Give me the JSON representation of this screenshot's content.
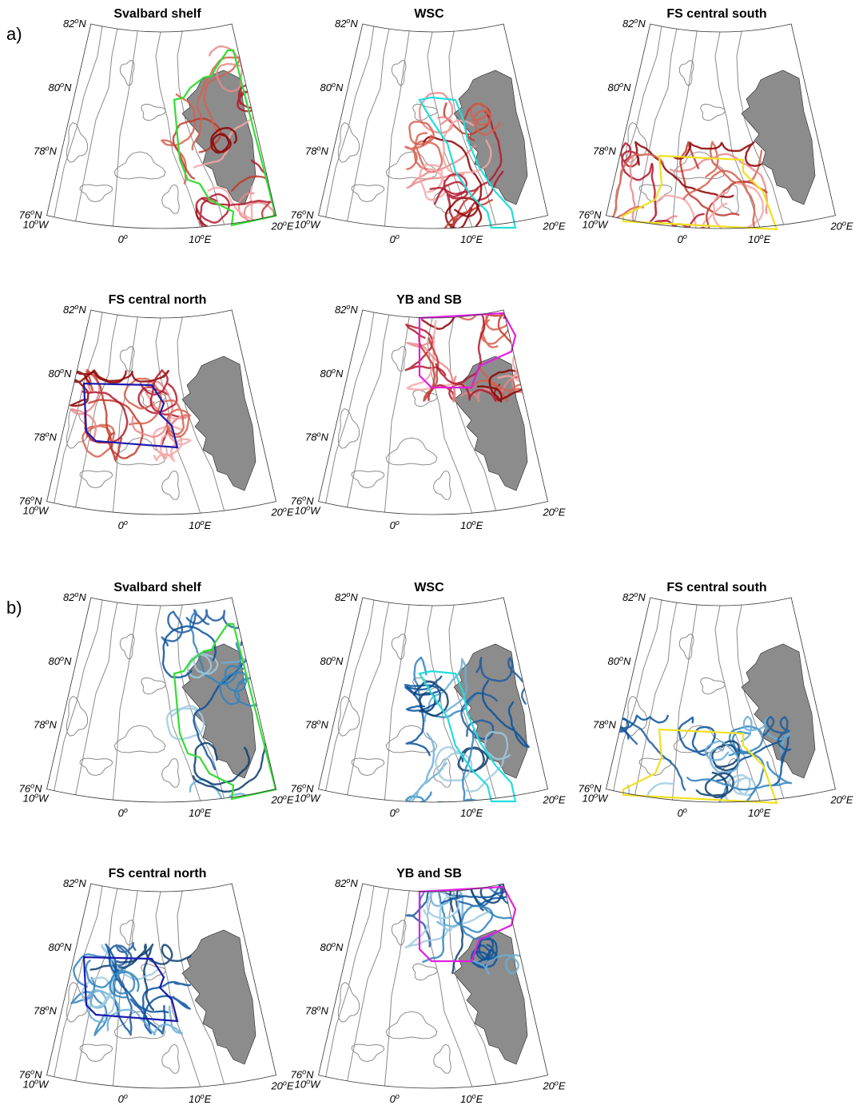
{
  "figure": {
    "lat_labels": [
      [
        "82",
        "o",
        "N"
      ],
      [
        "80",
        "o",
        "N"
      ],
      [
        "78",
        "o",
        "N"
      ],
      [
        "76",
        "o",
        "N"
      ]
    ],
    "lon_labels": [
      [
        "10",
        "o",
        "W"
      ],
      [
        "0",
        "o"
      ],
      [
        "10",
        "o",
        "E"
      ],
      [
        "20",
        "o",
        "E"
      ]
    ],
    "groups": [
      {
        "label": "a)",
        "track_colors": [
          "#b2182b",
          "#d6604d",
          "#e8888a",
          "#c0392b",
          "#8b0000",
          "#f4a6a6"
        ],
        "panels": [
          {
            "title": "Svalbard shelf",
            "region_color": "#33dd33"
          },
          {
            "title": "WSC",
            "region_color": "#22dddd"
          },
          {
            "title": "FS central south",
            "region_color": "#f0e020"
          },
          {
            "title": "FS central north",
            "region_color": "#1a1ab0"
          },
          {
            "title": "YB and SB",
            "region_color": "#e020e0"
          }
        ]
      },
      {
        "label": "b)",
        "track_colors": [
          "#08519c",
          "#3182bd",
          "#6baed6",
          "#1c5a9e",
          "#0b3c6e",
          "#9ecae1"
        ],
        "panels": [
          {
            "title": "Svalbard shelf",
            "region_color": "#33dd33"
          },
          {
            "title": "WSC",
            "region_color": "#22dddd"
          },
          {
            "title": "FS central south",
            "region_color": "#f0e020"
          },
          {
            "title": "FS central north",
            "region_color": "#1a1ab0"
          },
          {
            "title": "YB and SB",
            "region_color": "#e020e0"
          }
        ]
      }
    ]
  }
}
